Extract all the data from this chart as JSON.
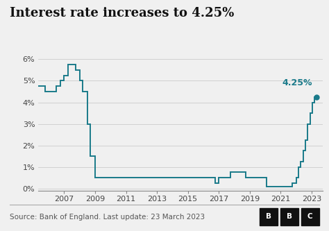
{
  "title": "Interest rate increases to 4.25%",
  "line_color": "#1a7a8a",
  "background_color": "#f0f0f0",
  "plot_bg_color": "#f0f0f0",
  "source_text": "Source: Bank of England. Last update: 23 March 2023",
  "annotation_label": "4.25%",
  "annotation_color": "#1a7a8a",
  "ylim": [
    -0.001,
    0.065
  ],
  "yticks": [
    0,
    0.01,
    0.02,
    0.03,
    0.04,
    0.05,
    0.06
  ],
  "ytick_labels": [
    "0%",
    "1%",
    "2%",
    "3%",
    "4%",
    "5%",
    "6%"
  ],
  "xlim": [
    2005.3,
    2023.7
  ],
  "xticks": [
    2007,
    2009,
    2011,
    2013,
    2015,
    2017,
    2019,
    2021,
    2023
  ],
  "title_fontsize": 13,
  "tick_fontsize": 8,
  "source_fontsize": 7.5,
  "data": [
    [
      2004.5,
      0.0475
    ],
    [
      2005.75,
      0.0475
    ],
    [
      2005.75,
      0.045
    ],
    [
      2006.5,
      0.045
    ],
    [
      2006.5,
      0.0475
    ],
    [
      2006.75,
      0.0475
    ],
    [
      2006.75,
      0.05
    ],
    [
      2007.0,
      0.05
    ],
    [
      2007.0,
      0.0525
    ],
    [
      2007.25,
      0.0525
    ],
    [
      2007.25,
      0.0575
    ],
    [
      2007.75,
      0.0575
    ],
    [
      2007.75,
      0.055
    ],
    [
      2008.0,
      0.055
    ],
    [
      2008.0,
      0.05
    ],
    [
      2008.2,
      0.05
    ],
    [
      2008.2,
      0.045
    ],
    [
      2008.5,
      0.045
    ],
    [
      2008.5,
      0.03
    ],
    [
      2008.7,
      0.03
    ],
    [
      2008.7,
      0.015
    ],
    [
      2009.0,
      0.015
    ],
    [
      2009.0,
      0.005
    ],
    [
      2016.75,
      0.005
    ],
    [
      2016.75,
      0.0025
    ],
    [
      2017.0,
      0.0025
    ],
    [
      2017.0,
      0.005
    ],
    [
      2017.75,
      0.005
    ],
    [
      2017.75,
      0.0075
    ],
    [
      2018.75,
      0.0075
    ],
    [
      2018.75,
      0.005
    ],
    [
      2020.1,
      0.005
    ],
    [
      2020.1,
      0.001
    ],
    [
      2020.4,
      0.001
    ],
    [
      2021.75,
      0.001
    ],
    [
      2021.75,
      0.0025
    ],
    [
      2022.0,
      0.0025
    ],
    [
      2022.0,
      0.005
    ],
    [
      2022.15,
      0.005
    ],
    [
      2022.15,
      0.01
    ],
    [
      2022.3,
      0.01
    ],
    [
      2022.3,
      0.0125
    ],
    [
      2022.45,
      0.0125
    ],
    [
      2022.45,
      0.0175
    ],
    [
      2022.6,
      0.0175
    ],
    [
      2022.6,
      0.0225
    ],
    [
      2022.75,
      0.0225
    ],
    [
      2022.75,
      0.03
    ],
    [
      2022.9,
      0.03
    ],
    [
      2022.9,
      0.035
    ],
    [
      2023.05,
      0.035
    ],
    [
      2023.05,
      0.04
    ],
    [
      2023.2,
      0.04
    ],
    [
      2023.2,
      0.0425
    ],
    [
      2023.3,
      0.0425
    ]
  ]
}
